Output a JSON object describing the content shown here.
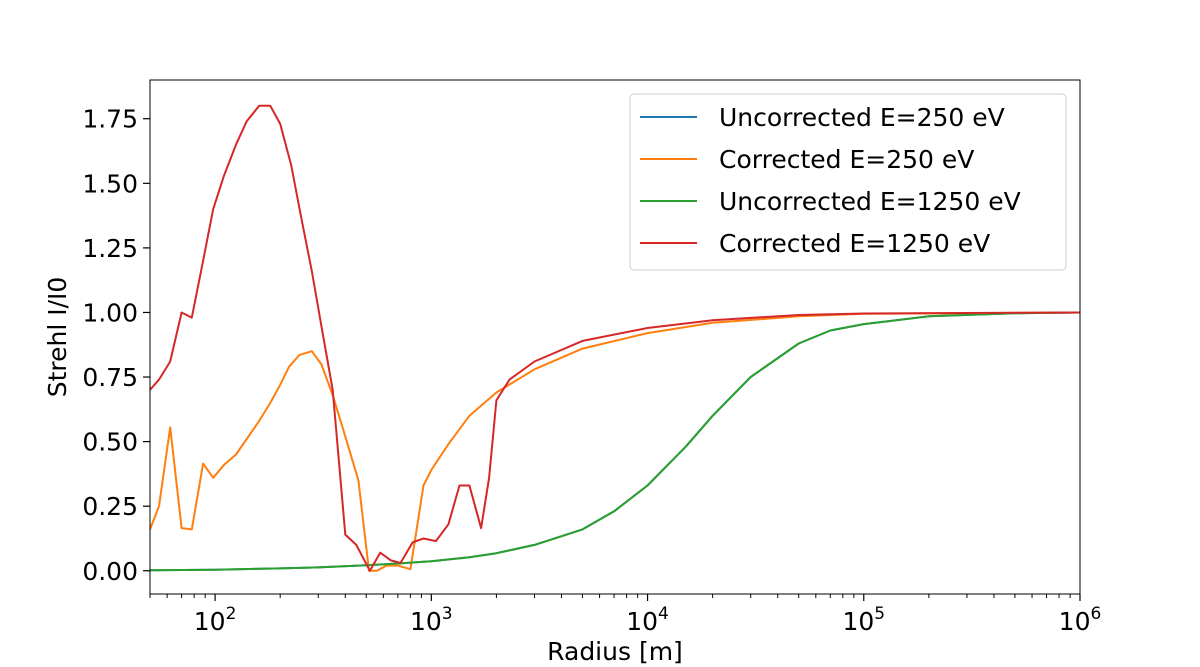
{
  "chart_data": {
    "type": "line",
    "title": "",
    "xlabel": "Radius [m]",
    "ylabel": "Strehl I/I0",
    "xscale": "log",
    "xlim": [
      50,
      1000000
    ],
    "ylim": [
      -0.09,
      1.9
    ],
    "x_ticks": [
      {
        "value": 100,
        "base": "10",
        "exp": "2"
      },
      {
        "value": 1000,
        "base": "10",
        "exp": "3"
      },
      {
        "value": 10000,
        "base": "10",
        "exp": "4"
      },
      {
        "value": 100000,
        "base": "10",
        "exp": "5"
      },
      {
        "value": 1000000,
        "base": "10",
        "exp": "6"
      }
    ],
    "y_ticks": [
      {
        "value": 0.0,
        "label": "0.00"
      },
      {
        "value": 0.25,
        "label": "0.25"
      },
      {
        "value": 0.5,
        "label": "0.50"
      },
      {
        "value": 0.75,
        "label": "0.75"
      },
      {
        "value": 1.0,
        "label": "1.00"
      },
      {
        "value": 1.25,
        "label": "1.25"
      },
      {
        "value": 1.5,
        "label": "1.50"
      },
      {
        "value": 1.75,
        "label": "1.75"
      }
    ],
    "grid": false,
    "legend_position": "top-right",
    "series": [
      {
        "name": "Uncorrected E=250 eV",
        "color": "#1f77b4",
        "points": [
          [
            50,
            0.002
          ],
          [
            100,
            0.004
          ],
          [
            200,
            0.009
          ],
          [
            300,
            0.013
          ],
          [
            500,
            0.021
          ],
          [
            700,
            0.028
          ],
          [
            1000,
            0.037
          ],
          [
            1500,
            0.052
          ],
          [
            2000,
            0.068
          ],
          [
            3000,
            0.1
          ],
          [
            5000,
            0.16
          ],
          [
            7000,
            0.23
          ],
          [
            10000,
            0.33
          ],
          [
            15000,
            0.48
          ],
          [
            20000,
            0.6
          ],
          [
            30000,
            0.75
          ],
          [
            50000,
            0.88
          ],
          [
            70000,
            0.93
          ],
          [
            100000,
            0.955
          ],
          [
            200000,
            0.985
          ],
          [
            500000,
            0.997
          ],
          [
            1000000,
            1.0
          ]
        ]
      },
      {
        "name": "Corrected E=250 eV",
        "color": "#ff7f0e",
        "points": [
          [
            50,
            0.16
          ],
          [
            55,
            0.25
          ],
          [
            62,
            0.555
          ],
          [
            70,
            0.165
          ],
          [
            78,
            0.16
          ],
          [
            88,
            0.415
          ],
          [
            98,
            0.36
          ],
          [
            110,
            0.41
          ],
          [
            125,
            0.45
          ],
          [
            140,
            0.51
          ],
          [
            160,
            0.58
          ],
          [
            180,
            0.65
          ],
          [
            200,
            0.72
          ],
          [
            220,
            0.79
          ],
          [
            245,
            0.835
          ],
          [
            280,
            0.85
          ],
          [
            310,
            0.8
          ],
          [
            350,
            0.68
          ],
          [
            400,
            0.52
          ],
          [
            460,
            0.35
          ],
          [
            515,
            0.0
          ],
          [
            560,
            0.0
          ],
          [
            620,
            0.02
          ],
          [
            700,
            0.02
          ],
          [
            800,
            0.006
          ],
          [
            920,
            0.33
          ],
          [
            1000,
            0.39
          ],
          [
            1200,
            0.49
          ],
          [
            1500,
            0.6
          ],
          [
            2000,
            0.69
          ],
          [
            3000,
            0.78
          ],
          [
            5000,
            0.86
          ],
          [
            10000,
            0.92
          ],
          [
            20000,
            0.96
          ],
          [
            50000,
            0.985
          ],
          [
            100000,
            0.995
          ],
          [
            1000000,
            1.0
          ]
        ]
      },
      {
        "name": "Uncorrected E=1250 eV",
        "color": "#2ca02c",
        "points": [
          [
            50,
            0.002
          ],
          [
            100,
            0.004
          ],
          [
            200,
            0.009
          ],
          [
            300,
            0.013
          ],
          [
            500,
            0.021
          ],
          [
            700,
            0.028
          ],
          [
            1000,
            0.037
          ],
          [
            1500,
            0.052
          ],
          [
            2000,
            0.068
          ],
          [
            3000,
            0.1
          ],
          [
            5000,
            0.16
          ],
          [
            7000,
            0.23
          ],
          [
            10000,
            0.33
          ],
          [
            15000,
            0.48
          ],
          [
            20000,
            0.6
          ],
          [
            30000,
            0.75
          ],
          [
            50000,
            0.88
          ],
          [
            70000,
            0.93
          ],
          [
            100000,
            0.955
          ],
          [
            200000,
            0.985
          ],
          [
            500000,
            0.997
          ],
          [
            1000000,
            1.0
          ]
        ]
      },
      {
        "name": "Corrected E=1250 eV",
        "color": "#d62728",
        "points": [
          [
            50,
            0.7
          ],
          [
            55,
            0.74
          ],
          [
            62,
            0.81
          ],
          [
            70,
            1.0
          ],
          [
            78,
            0.98
          ],
          [
            88,
            1.2
          ],
          [
            98,
            1.4
          ],
          [
            110,
            1.53
          ],
          [
            125,
            1.65
          ],
          [
            140,
            1.74
          ],
          [
            160,
            1.8
          ],
          [
            180,
            1.8
          ],
          [
            200,
            1.73
          ],
          [
            225,
            1.57
          ],
          [
            250,
            1.37
          ],
          [
            280,
            1.16
          ],
          [
            310,
            0.95
          ],
          [
            350,
            0.7
          ],
          [
            400,
            0.14
          ],
          [
            450,
            0.1
          ],
          [
            520,
            0.0
          ],
          [
            580,
            0.07
          ],
          [
            650,
            0.04
          ],
          [
            720,
            0.03
          ],
          [
            820,
            0.11
          ],
          [
            920,
            0.125
          ],
          [
            1050,
            0.115
          ],
          [
            1200,
            0.18
          ],
          [
            1350,
            0.33
          ],
          [
            1500,
            0.33
          ],
          [
            1700,
            0.165
          ],
          [
            1850,
            0.36
          ],
          [
            2000,
            0.66
          ],
          [
            2300,
            0.74
          ],
          [
            3000,
            0.81
          ],
          [
            5000,
            0.89
          ],
          [
            10000,
            0.94
          ],
          [
            20000,
            0.97
          ],
          [
            50000,
            0.99
          ],
          [
            100000,
            0.996
          ],
          [
            1000000,
            1.0
          ]
        ]
      }
    ]
  }
}
